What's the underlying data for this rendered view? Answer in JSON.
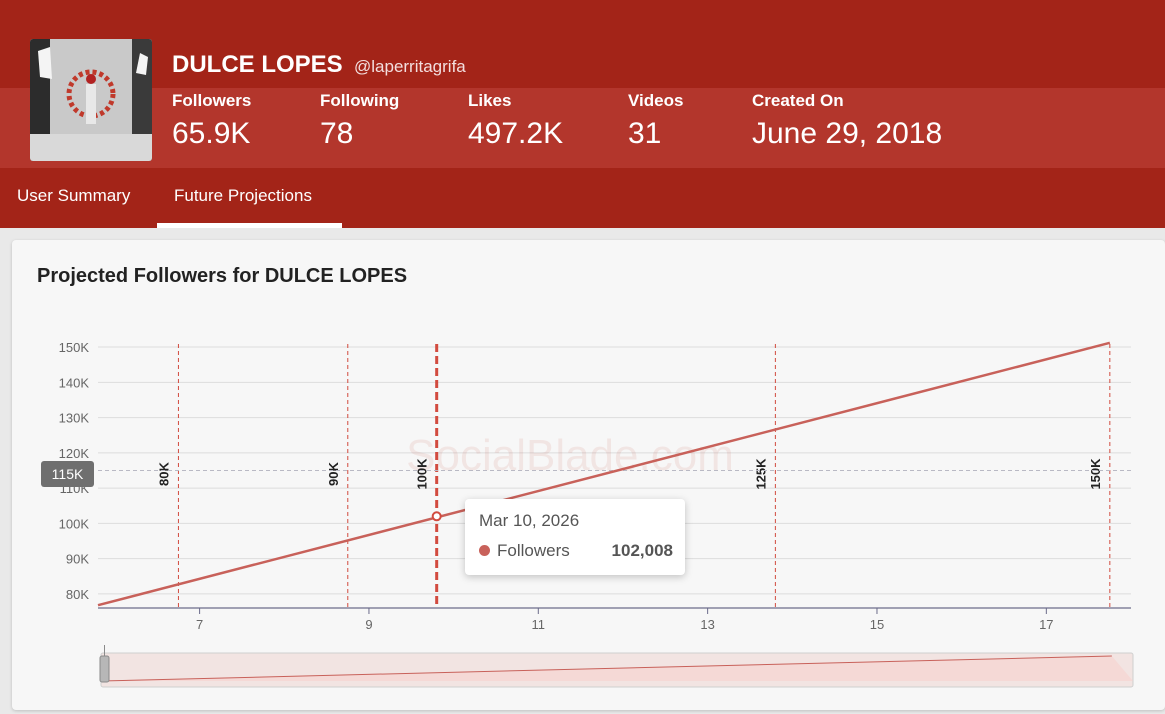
{
  "profile": {
    "name": "DULCE LOPES",
    "handle": "@laperritagrifa",
    "stats": [
      {
        "label": "Followers",
        "value": "65.9K"
      },
      {
        "label": "Following",
        "value": "78"
      },
      {
        "label": "Likes",
        "value": "497.2K"
      },
      {
        "label": "Videos",
        "value": "31"
      },
      {
        "label": "Created On",
        "value": "June 29, 2018"
      }
    ]
  },
  "tabs": [
    {
      "label": "User Summary",
      "active": false
    },
    {
      "label": "Future Projections",
      "active": true
    }
  ],
  "colors": {
    "brand": "#a32418",
    "line": "#c8615a",
    "marker": "#d24b3f"
  },
  "chart_title": "Projected Followers for DULCE LOPES",
  "watermark": "SocialBlade.com",
  "tooltip": {
    "date": "Mar 10, 2026",
    "series": "Followers",
    "value": "102,008"
  },
  "crosshair_label": "115K",
  "chart_data": {
    "type": "line",
    "title": "Projected Followers for DULCE LOPES",
    "xlabel": "",
    "ylabel": "",
    "x_ticks": [
      "7",
      "9",
      "11",
      "13",
      "15",
      "17"
    ],
    "y_ticks": [
      "80K",
      "90K",
      "100K",
      "110K",
      "120K",
      "130K",
      "140K",
      "150K"
    ],
    "xlim": [
      5.8,
      18.0
    ],
    "ylim": [
      76000,
      152000
    ],
    "series": [
      {
        "name": "Followers",
        "x": [
          5.8,
          17.75
        ],
        "y": [
          76800,
          151200
        ]
      }
    ],
    "milestones": [
      {
        "label": "80K",
        "x": 6.75
      },
      {
        "label": "90K",
        "x": 8.75
      },
      {
        "label": "100K",
        "x": 9.8
      },
      {
        "label": "125K",
        "x": 13.8
      },
      {
        "label": "150K",
        "x": 17.75
      }
    ],
    "hover_point": {
      "x": 9.8,
      "y": 102008
    },
    "crosshair_y": 115000,
    "grid": true
  }
}
